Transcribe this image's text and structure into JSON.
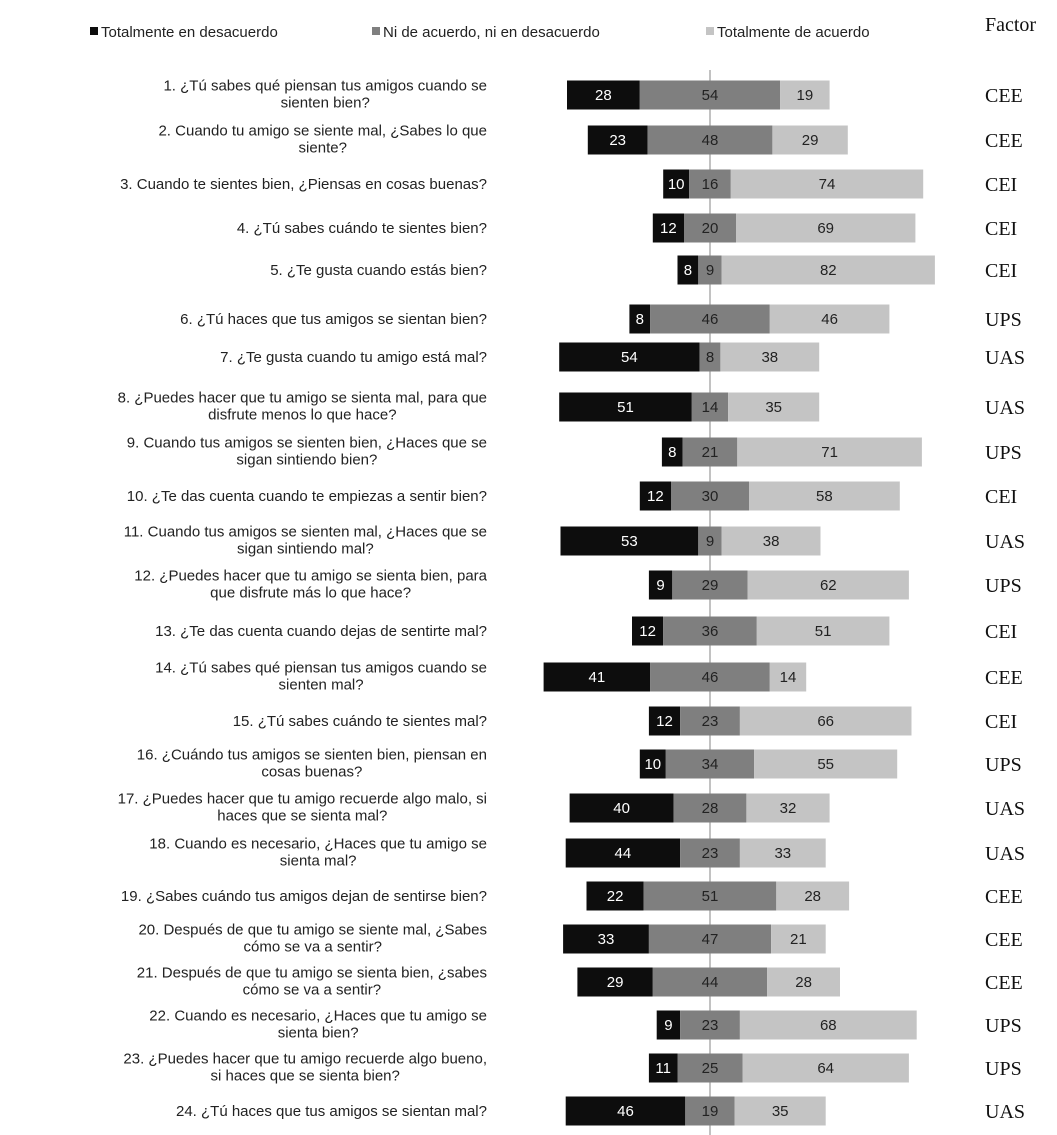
{
  "legend": {
    "disagree_label": "Totalmente en desacuerdo",
    "neutral_label": "Ni de acuerdo, ni en desacuerdo",
    "agree_label": "Totalmente de acuerdo"
  },
  "factor_header": "Factor",
  "colors": {
    "disagree": "#0d0d0d",
    "neutral": "#7f7f7f",
    "agree": "#c4c4c4",
    "center_line": "#9a9a9a"
  },
  "chart_data": {
    "type": "bar",
    "orientation": "horizontal-diverging",
    "series": [
      {
        "name": "Totalmente en desacuerdo",
        "values": [
          28,
          23,
          10,
          12,
          8,
          8,
          54,
          51,
          8,
          12,
          53,
          9,
          12,
          41,
          12,
          10,
          40,
          44,
          22,
          33,
          29,
          9,
          11,
          46
        ]
      },
      {
        "name": "Ni de acuerdo, ni en desacuerdo",
        "values": [
          54,
          48,
          16,
          20,
          9,
          46,
          8,
          14,
          21,
          30,
          9,
          29,
          36,
          46,
          23,
          34,
          28,
          23,
          51,
          47,
          44,
          23,
          25,
          19
        ]
      },
      {
        "name": "Totalmente de acuerdo",
        "values": [
          19,
          29,
          74,
          69,
          82,
          46,
          38,
          35,
          71,
          58,
          38,
          62,
          51,
          14,
          66,
          55,
          32,
          33,
          28,
          21,
          28,
          68,
          64,
          35
        ]
      }
    ],
    "categories": [
      [
        "1. ¿Tú sabes qué piensan tus amigos cuando se",
        "sienten bien?"
      ],
      [
        "2. Cuando tu amigo se siente mal, ¿Sabes lo que",
        "siente?"
      ],
      [
        "3. Cuando te sientes bien, ¿Piensas en cosas buenas?"
      ],
      [
        "4. ¿Tú sabes cuándo te sientes bien?"
      ],
      [
        "5. ¿Te gusta cuando estás bien?"
      ],
      [
        "6. ¿Tú haces que tus amigos se sientan bien?"
      ],
      [
        "7. ¿Te gusta cuando tu amigo está mal?"
      ],
      [
        "8. ¿Puedes hacer que tu amigo se sienta mal, para que",
        "disfrute menos lo que hace?"
      ],
      [
        "9. Cuando tus amigos se sienten bien, ¿Haces que se",
        "sigan sintiendo bien?"
      ],
      [
        "10. ¿Te das cuenta cuando te empiezas a sentir bien?"
      ],
      [
        "11. Cuando tus amigos se sienten mal, ¿Haces que se",
        "sigan sintiendo mal?"
      ],
      [
        "12. ¿Puedes hacer que tu amigo se sienta bien, para",
        "que disfrute más lo que hace?"
      ],
      [
        "13. ¿Te das cuenta cuando dejas de sentirte mal?"
      ],
      [
        "14. ¿Tú sabes qué piensan tus amigos cuando se",
        "sienten mal?"
      ],
      [
        "15. ¿Tú sabes cuándo te sientes mal?"
      ],
      [
        "16. ¿Cuándo tus amigos se sienten bien, piensan en",
        "cosas buenas?"
      ],
      [
        "17. ¿Puedes hacer que tu amigo recuerde algo malo, si",
        "haces que se sienta mal?"
      ],
      [
        "18. Cuando es necesario, ¿Haces que tu amigo se",
        "sienta mal?"
      ],
      [
        "19. ¿Sabes cuándo tus amigos dejan de sentirse bien?"
      ],
      [
        "20. Después de que tu amigo se siente mal, ¿Sabes",
        "cómo se va a sentir?"
      ],
      [
        "21. Después de que tu amigo se sienta bien, ¿sabes",
        "cómo se va a sentir?"
      ],
      [
        "22. Cuando es necesario, ¿Haces que tu amigo se",
        "sienta bien?"
      ],
      [
        "23. ¿Puedes hacer que tu amigo recuerde algo bueno,",
        "si haces que se sienta bien?"
      ],
      [
        "24. ¿Tú haces que tus amigos se sientan mal?"
      ]
    ],
    "factors": [
      "CEE",
      "CEE",
      "CEI",
      "CEI",
      "CEI",
      "UPS",
      "UAS",
      "UAS",
      "UPS",
      "CEI",
      "UAS",
      "UPS",
      "CEI",
      "CEE",
      "CEI",
      "UPS",
      "UAS",
      "UAS",
      "CEE",
      "CEE",
      "CEE",
      "UPS",
      "UPS",
      "UAS"
    ],
    "legend_position": "top",
    "grid": false
  }
}
